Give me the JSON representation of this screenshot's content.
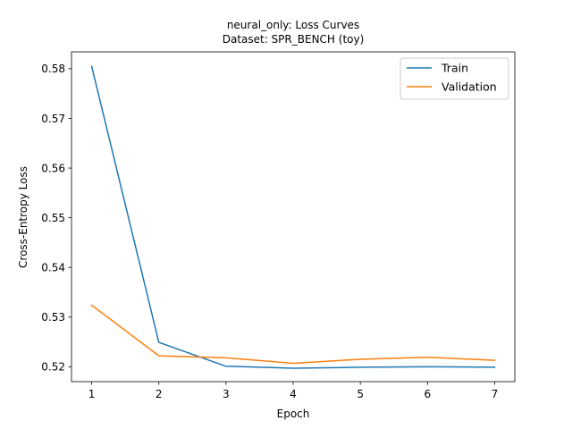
{
  "chart_data": {
    "type": "line",
    "title": "neural_only: Loss Curves",
    "subtitle": "Dataset: SPR_BENCH (toy)",
    "xlabel": "Epoch",
    "ylabel": "Cross-Entropy Loss",
    "x": [
      1,
      2,
      3,
      4,
      5,
      6,
      7
    ],
    "xlim": [
      0.7,
      7.3
    ],
    "ylim": [
      0.517,
      0.5834
    ],
    "xticks": [
      "1",
      "2",
      "3",
      "4",
      "5",
      "6",
      "7"
    ],
    "yticks": [
      0.52,
      0.53,
      0.54,
      0.55,
      0.56,
      0.57,
      0.58
    ],
    "ytick_labels": [
      "0.52",
      "0.53",
      "0.54",
      "0.55",
      "0.56",
      "0.57",
      "0.58"
    ],
    "grid": false,
    "legend_position": "upper right",
    "series": [
      {
        "name": "Train",
        "color": "#1f77b4",
        "values": [
          0.5805,
          0.5249,
          0.5201,
          0.5197,
          0.5199,
          0.52,
          0.5199
        ]
      },
      {
        "name": "Validation",
        "color": "#ff7f0e",
        "values": [
          0.5324,
          0.5222,
          0.5218,
          0.5207,
          0.5215,
          0.5219,
          0.5213
        ]
      }
    ]
  }
}
